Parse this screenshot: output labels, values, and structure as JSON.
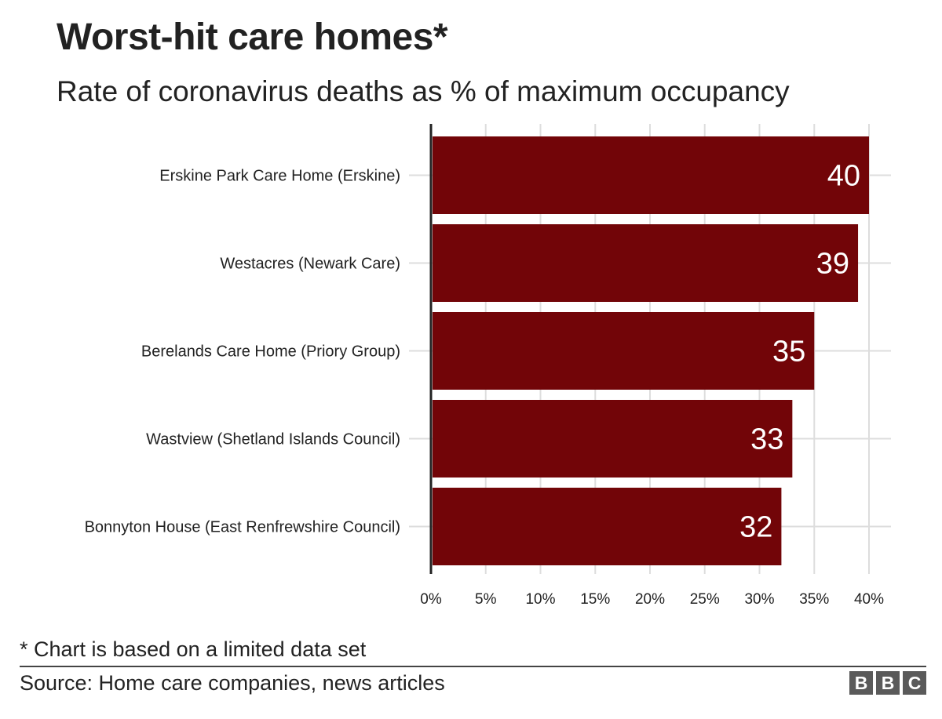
{
  "title": "Worst-hit care homes*",
  "subtitle": "Rate of coronavirus deaths as % of maximum occupancy",
  "footnote": "* Chart is based on a limited data set",
  "source": "Source: Home care companies, news articles",
  "logo_letters": [
    "B",
    "B",
    "C"
  ],
  "chart_data": {
    "type": "bar",
    "orientation": "horizontal",
    "categories": [
      "Erskine Park Care Home (Erskine)",
      "Westacres (Newark Care)",
      "Berelands Care Home (Priory Group)",
      "Wastview (Shetland Islands Council)",
      "Bonnyton House (East Renfrewshire Council)"
    ],
    "values": [
      40,
      39,
      35,
      33,
      32
    ],
    "data_labels": [
      "40",
      "39",
      "35",
      "33",
      "32"
    ],
    "x_ticks": [
      0,
      5,
      10,
      15,
      20,
      25,
      30,
      35,
      40
    ],
    "x_tick_labels": [
      "0%",
      "5%",
      "10%",
      "15%",
      "20%",
      "25%",
      "30%",
      "35%",
      "40%"
    ],
    "xlim": [
      0,
      40
    ],
    "grid": true,
    "bar_color": "#720508",
    "label_color": "#ffffff",
    "grid_color": "#dddddd"
  }
}
